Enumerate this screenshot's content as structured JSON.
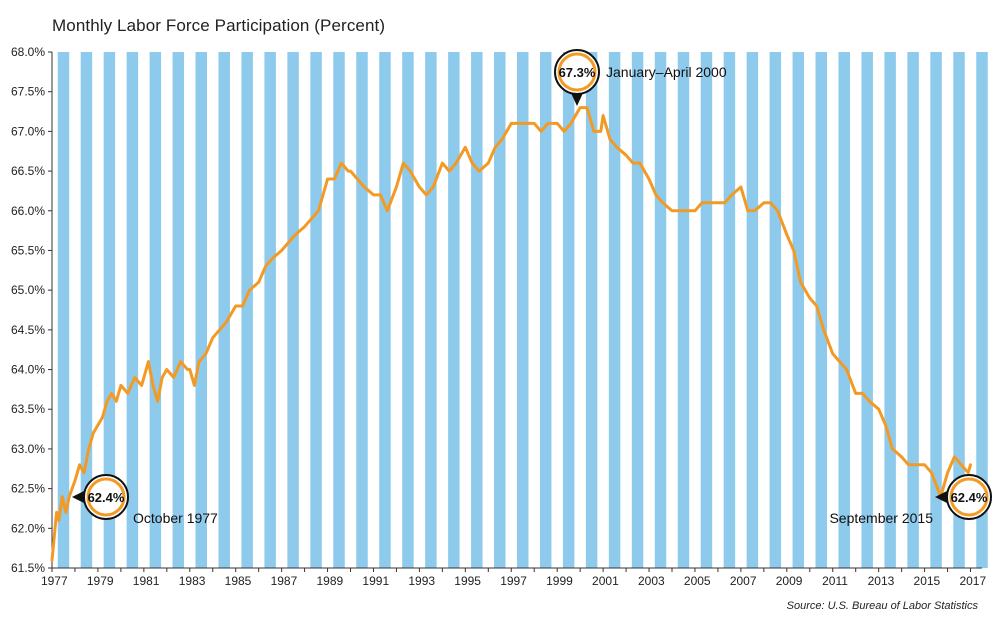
{
  "chart_data": {
    "type": "line",
    "title": "Monthly Labor Force Participation (Percent)",
    "source": "Source: U.S. Bureau of Labor Statistics",
    "ylim": [
      61.5,
      68.0
    ],
    "xlim": [
      1977.0,
      2017.5
    ],
    "y_ticks": [
      "61.5%",
      "62.0%",
      "62.5%",
      "63.0%",
      "63.5%",
      "64.0%",
      "64.5%",
      "65.0%",
      "65.5%",
      "66.0%",
      "66.5%",
      "67.0%",
      "67.5%",
      "68.0%"
    ],
    "x_ticks": [
      "1977",
      "1979",
      "1981",
      "1983",
      "1985",
      "1987",
      "1989",
      "1991",
      "1993",
      "1995",
      "1997",
      "1999",
      "2001",
      "2003",
      "2005",
      "2007",
      "2009",
      "2011",
      "2013",
      "2015",
      "2017"
    ],
    "background": "alternating vertical light-blue and white yearly bands",
    "series": [
      {
        "color": "#F39A24",
        "points": [
          [
            1977.0,
            61.6
          ],
          [
            1977.1,
            61.9
          ],
          [
            1977.2,
            62.2
          ],
          [
            1977.3,
            62.1
          ],
          [
            1977.45,
            62.4
          ],
          [
            1977.6,
            62.2
          ],
          [
            1977.75,
            62.4
          ],
          [
            1978.0,
            62.6
          ],
          [
            1978.2,
            62.8
          ],
          [
            1978.4,
            62.7
          ],
          [
            1978.6,
            63.0
          ],
          [
            1978.8,
            63.2
          ],
          [
            1979.0,
            63.3
          ],
          [
            1979.2,
            63.4
          ],
          [
            1979.4,
            63.6
          ],
          [
            1979.6,
            63.7
          ],
          [
            1979.8,
            63.6
          ],
          [
            1980.0,
            63.8
          ],
          [
            1980.3,
            63.7
          ],
          [
            1980.6,
            63.9
          ],
          [
            1980.9,
            63.8
          ],
          [
            1981.0,
            63.9
          ],
          [
            1981.2,
            64.1
          ],
          [
            1981.4,
            63.8
          ],
          [
            1981.6,
            63.6
          ],
          [
            1981.8,
            63.9
          ],
          [
            1982.0,
            64.0
          ],
          [
            1982.3,
            63.9
          ],
          [
            1982.6,
            64.1
          ],
          [
            1982.9,
            64.0
          ],
          [
            1983.0,
            64.0
          ],
          [
            1983.2,
            63.8
          ],
          [
            1983.4,
            64.1
          ],
          [
            1983.7,
            64.2
          ],
          [
            1984.0,
            64.4
          ],
          [
            1984.3,
            64.5
          ],
          [
            1984.6,
            64.6
          ],
          [
            1985.0,
            64.8
          ],
          [
            1985.3,
            64.8
          ],
          [
            1985.6,
            65.0
          ],
          [
            1986.0,
            65.1
          ],
          [
            1986.3,
            65.3
          ],
          [
            1986.6,
            65.4
          ],
          [
            1987.0,
            65.5
          ],
          [
            1987.3,
            65.6
          ],
          [
            1987.6,
            65.7
          ],
          [
            1988.0,
            65.8
          ],
          [
            1988.3,
            65.9
          ],
          [
            1988.6,
            66.0
          ],
          [
            1989.0,
            66.4
          ],
          [
            1989.3,
            66.4
          ],
          [
            1989.6,
            66.6
          ],
          [
            1989.9,
            66.5
          ],
          [
            1990.0,
            66.5
          ],
          [
            1990.3,
            66.4
          ],
          [
            1990.6,
            66.3
          ],
          [
            1991.0,
            66.2
          ],
          [
            1991.3,
            66.2
          ],
          [
            1991.6,
            66.0
          ],
          [
            1992.0,
            66.3
          ],
          [
            1992.3,
            66.6
          ],
          [
            1992.6,
            66.5
          ],
          [
            1993.0,
            66.3
          ],
          [
            1993.3,
            66.2
          ],
          [
            1993.6,
            66.3
          ],
          [
            1994.0,
            66.6
          ],
          [
            1994.3,
            66.5
          ],
          [
            1994.6,
            66.6
          ],
          [
            1995.0,
            66.8
          ],
          [
            1995.3,
            66.6
          ],
          [
            1995.6,
            66.5
          ],
          [
            1996.0,
            66.6
          ],
          [
            1996.3,
            66.8
          ],
          [
            1996.6,
            66.9
          ],
          [
            1997.0,
            67.1
          ],
          [
            1997.3,
            67.1
          ],
          [
            1997.6,
            67.1
          ],
          [
            1998.0,
            67.1
          ],
          [
            1998.3,
            67.0
          ],
          [
            1998.6,
            67.1
          ],
          [
            1999.0,
            67.1
          ],
          [
            1999.3,
            67.0
          ],
          [
            1999.6,
            67.1
          ],
          [
            2000.0,
            67.3
          ],
          [
            2000.3,
            67.3
          ],
          [
            2000.6,
            67.0
          ],
          [
            2000.9,
            67.0
          ],
          [
            2001.0,
            67.2
          ],
          [
            2001.3,
            66.9
          ],
          [
            2001.6,
            66.8
          ],
          [
            2002.0,
            66.7
          ],
          [
            2002.3,
            66.6
          ],
          [
            2002.6,
            66.6
          ],
          [
            2003.0,
            66.4
          ],
          [
            2003.3,
            66.2
          ],
          [
            2003.6,
            66.1
          ],
          [
            2004.0,
            66.0
          ],
          [
            2004.3,
            66.0
          ],
          [
            2004.6,
            66.0
          ],
          [
            2005.0,
            66.0
          ],
          [
            2005.3,
            66.1
          ],
          [
            2005.6,
            66.1
          ],
          [
            2006.0,
            66.1
          ],
          [
            2006.3,
            66.1
          ],
          [
            2006.6,
            66.2
          ],
          [
            2007.0,
            66.3
          ],
          [
            2007.3,
            66.0
          ],
          [
            2007.6,
            66.0
          ],
          [
            2008.0,
            66.1
          ],
          [
            2008.3,
            66.1
          ],
          [
            2008.6,
            66.0
          ],
          [
            2009.0,
            65.7
          ],
          [
            2009.3,
            65.5
          ],
          [
            2009.6,
            65.1
          ],
          [
            2010.0,
            64.9
          ],
          [
            2010.3,
            64.8
          ],
          [
            2010.6,
            64.5
          ],
          [
            2011.0,
            64.2
          ],
          [
            2011.3,
            64.1
          ],
          [
            2011.6,
            64.0
          ],
          [
            2012.0,
            63.7
          ],
          [
            2012.3,
            63.7
          ],
          [
            2012.6,
            63.6
          ],
          [
            2013.0,
            63.5
          ],
          [
            2013.3,
            63.3
          ],
          [
            2013.6,
            63.0
          ],
          [
            2014.0,
            62.9
          ],
          [
            2014.3,
            62.8
          ],
          [
            2014.6,
            62.8
          ],
          [
            2015.0,
            62.8
          ],
          [
            2015.3,
            62.7
          ],
          [
            2015.7,
            62.4
          ],
          [
            2016.0,
            62.7
          ],
          [
            2016.3,
            62.9
          ],
          [
            2016.6,
            62.8
          ],
          [
            2016.9,
            62.7
          ],
          [
            2017.0,
            62.8
          ]
        ]
      }
    ],
    "annotations": [
      {
        "callout": "62.4%",
        "label": "October 1977",
        "x": 1977.75,
        "y": 62.4
      },
      {
        "callout": "67.3%",
        "label": "January–April 2000",
        "x": 2000.0,
        "y": 67.3
      },
      {
        "callout": "62.4%",
        "label": "September 2015",
        "x": 2015.7,
        "y": 62.4
      }
    ]
  }
}
